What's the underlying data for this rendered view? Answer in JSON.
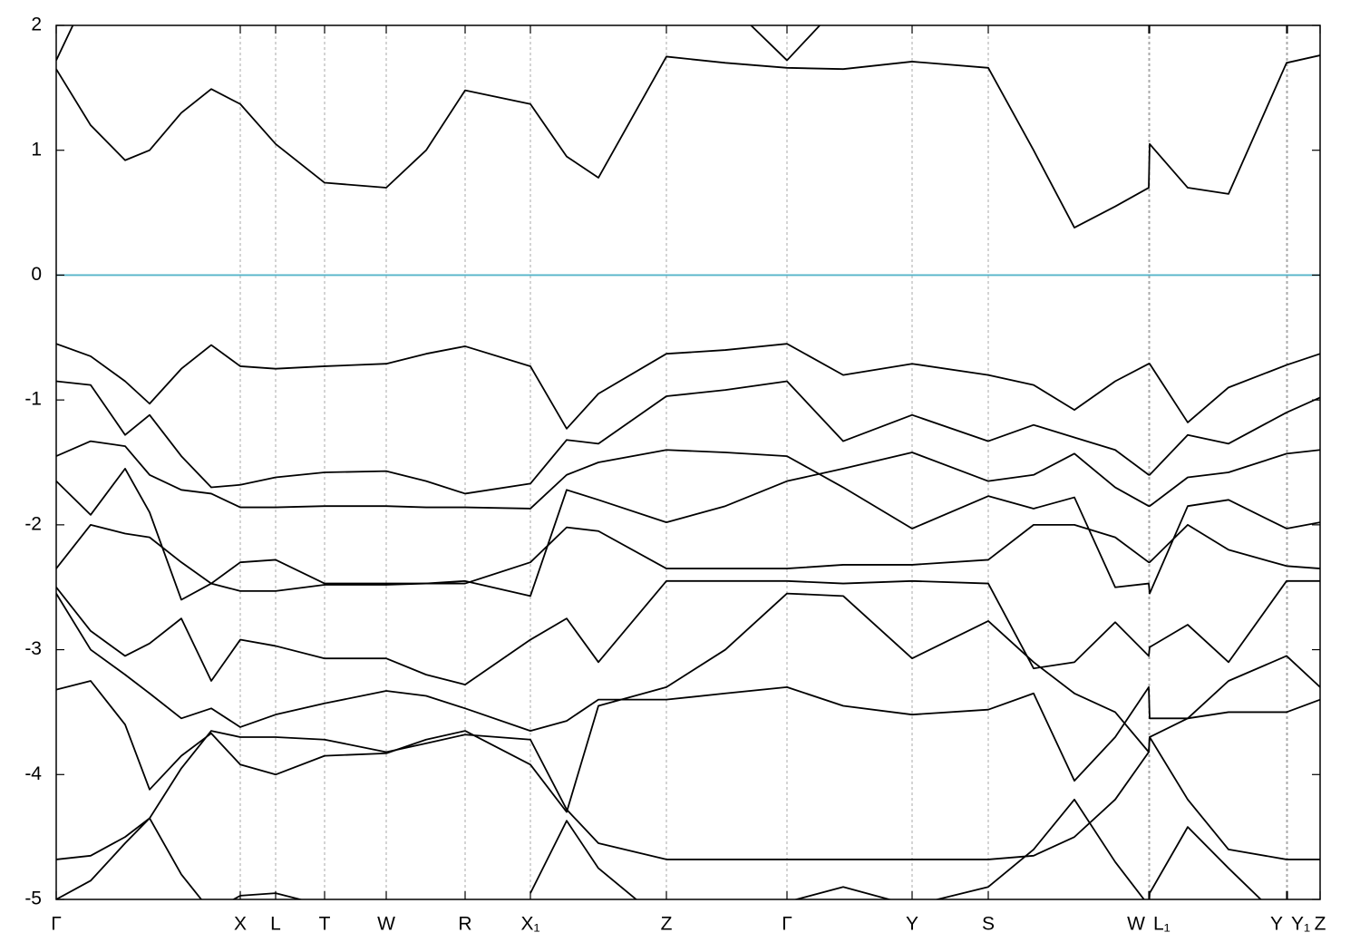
{
  "chart_data": {
    "type": "line",
    "x": [
      0,
      0.38,
      0.76,
      1.03,
      1.38,
      1.71,
      2.03,
      2.42,
      2.96,
      3.64,
      4.08,
      4.51,
      5.23,
      5.63,
      5.98,
      6.73,
      7.38,
      8.06,
      8.68,
      9.44,
      10.28,
      10.78,
      11.23,
      11.68,
      12.05,
      12.06,
      12.48,
      12.93,
      13.57,
      13.94
    ],
    "xlim": [
      0,
      13.94
    ],
    "ylim": [
      -5,
      2
    ],
    "yticks": [
      -5,
      -4,
      -3,
      -2,
      -1,
      0,
      1,
      2
    ],
    "xticks": [
      {
        "value": 0,
        "label": "Γ"
      },
      {
        "value": 2.03,
        "label": "X"
      },
      {
        "value": 2.42,
        "label": "L"
      },
      {
        "value": 2.96,
        "label": "T"
      },
      {
        "value": 3.64,
        "label": "W"
      },
      {
        "value": 4.51,
        "label": "R"
      },
      {
        "value": 5.23,
        "label": "X₁"
      },
      {
        "value": 6.73,
        "label": "Z"
      },
      {
        "value": 8.06,
        "label": "Γ"
      },
      {
        "value": 9.44,
        "label": "Y"
      },
      {
        "value": 10.28,
        "label": "S"
      },
      {
        "value": 12.05,
        "label": "W"
      },
      {
        "value": 12.06,
        "label": "L₁"
      },
      {
        "value": 13.57,
        "label": "Y"
      },
      {
        "value": 13.58,
        "label": "Y₁"
      },
      {
        "value": 13.94,
        "label": "Z"
      }
    ],
    "x_grid": true,
    "hlines": [
      {
        "value": 0,
        "color": "#56b4c9"
      }
    ],
    "series": [
      {
        "color": "#000000",
        "values": [
          1.72,
          2.3,
          null,
          null,
          null,
          null,
          null,
          null,
          null,
          null,
          null,
          null,
          null,
          null,
          null,
          null,
          2.2,
          1.72,
          2.2,
          null,
          null,
          null,
          null,
          null,
          null,
          null,
          null,
          null,
          null,
          null
        ]
      },
      {
        "color": "#000000",
        "values": [
          1.65,
          1.2,
          0.92,
          1.0,
          1.3,
          1.49,
          1.37,
          1.05,
          0.74,
          0.7,
          1.0,
          1.48,
          1.37,
          0.95,
          0.78,
          1.75,
          1.7,
          1.66,
          1.65,
          1.71,
          1.66,
          1.0,
          0.38,
          0.55,
          0.7,
          1.05,
          0.7,
          0.65,
          1.7,
          1.76
        ]
      },
      {
        "color": "#000000",
        "values": [
          -0.55,
          -0.65,
          -0.85,
          -1.03,
          -0.75,
          -0.56,
          -0.73,
          -0.75,
          -0.73,
          -0.71,
          -0.63,
          -0.57,
          -0.73,
          -1.23,
          -0.95,
          -0.63,
          -0.6,
          -0.55,
          -0.8,
          -0.71,
          -0.8,
          -0.88,
          -1.08,
          -0.85,
          -0.71,
          -0.71,
          -1.18,
          -0.9,
          -0.72,
          -0.63
        ]
      },
      {
        "color": "#000000",
        "values": [
          -0.85,
          -0.88,
          -1.28,
          -1.12,
          -1.45,
          -1.7,
          -1.68,
          -1.62,
          -1.58,
          -1.57,
          -1.65,
          -1.75,
          -1.67,
          -1.32,
          -1.35,
          -0.97,
          -0.92,
          -0.85,
          -1.33,
          -1.12,
          -1.33,
          -1.2,
          -1.3,
          -1.4,
          -1.6,
          -1.6,
          -1.28,
          -1.35,
          -1.1,
          -0.98
        ]
      },
      {
        "color": "#000000",
        "values": [
          -1.45,
          -1.33,
          -1.37,
          -1.6,
          -1.72,
          -1.75,
          -1.86,
          -1.86,
          -1.85,
          -1.85,
          -1.86,
          -1.86,
          -1.87,
          -1.6,
          -1.5,
          -1.4,
          -1.42,
          -1.45,
          -1.7,
          -2.03,
          -1.77,
          -1.87,
          -1.78,
          -2.5,
          -2.47,
          -2.55,
          -1.85,
          -1.8,
          -2.03,
          -1.98
        ]
      },
      {
        "color": "#000000",
        "values": [
          -1.65,
          -1.92,
          -1.55,
          -1.9,
          -2.6,
          -2.47,
          -2.3,
          -2.28,
          -2.47,
          -2.47,
          -2.47,
          -2.45,
          -2.57,
          -1.72,
          -1.8,
          -1.98,
          -1.85,
          -1.65,
          -1.55,
          -1.42,
          -1.65,
          -1.6,
          -1.43,
          -1.7,
          -1.85,
          -1.85,
          -1.62,
          -1.58,
          -1.43,
          -1.4
        ]
      },
      {
        "color": "#000000",
        "values": [
          -2.35,
          -2.0,
          -2.07,
          -2.1,
          -2.3,
          -2.47,
          -2.53,
          -2.53,
          -2.48,
          -2.48,
          -2.47,
          -2.47,
          -2.3,
          -2.02,
          -2.05,
          -2.35,
          -2.35,
          -2.35,
          -2.32,
          -2.32,
          -2.28,
          -2.0,
          -2.0,
          -2.1,
          -2.3,
          -2.3,
          -2.0,
          -2.2,
          -2.33,
          -2.35
        ]
      },
      {
        "color": "#000000",
        "values": [
          -2.5,
          -2.85,
          -3.05,
          -2.95,
          -2.75,
          -3.25,
          -2.92,
          -2.97,
          -3.07,
          -3.07,
          -3.2,
          -3.28,
          -2.92,
          -2.75,
          -3.1,
          -2.45,
          -2.45,
          -2.45,
          -2.47,
          -2.45,
          -2.47,
          -3.15,
          -3.1,
          -2.78,
          -3.05,
          -2.98,
          -2.8,
          -3.1,
          -2.45,
          -2.45
        ]
      },
      {
        "color": "#000000",
        "values": [
          -2.55,
          -3.0,
          -3.2,
          -3.35,
          -3.55,
          -3.47,
          -3.62,
          -3.52,
          -3.43,
          -3.33,
          -3.37,
          -3.47,
          -3.65,
          -3.57,
          -3.4,
          -3.4,
          -3.35,
          -3.3,
          -3.45,
          -3.52,
          -3.48,
          -3.35,
          -4.05,
          -3.7,
          -3.3,
          -3.55,
          -3.55,
          -3.5,
          -3.5,
          -3.4
        ]
      },
      {
        "color": "#000000",
        "values": [
          -3.32,
          -3.25,
          -3.6,
          -4.12,
          -3.85,
          -3.67,
          -3.92,
          -4.0,
          -3.85,
          -3.83,
          -3.72,
          -3.65,
          -3.92,
          -4.3,
          -3.45,
          -3.3,
          -3.0,
          -2.55,
          -2.57,
          -3.07,
          -2.77,
          -3.1,
          -3.35,
          -3.5,
          -3.82,
          -3.7,
          -3.55,
          -3.25,
          -3.05,
          -3.3
        ]
      },
      {
        "color": "#000000",
        "values": [
          -4.68,
          -4.65,
          -4.5,
          -4.35,
          -3.95,
          -3.65,
          -3.7,
          -3.7,
          -3.72,
          -3.82,
          -3.75,
          -3.68,
          -3.72,
          -4.28,
          -4.55,
          -4.68,
          -4.68,
          -4.68,
          -4.68,
          -4.68,
          -4.68,
          -4.65,
          -4.5,
          -4.2,
          -3.82,
          -3.7,
          -4.2,
          -4.6,
          -4.68,
          -4.68
        ]
      },
      {
        "color": "#000000",
        "values": [
          -5.0,
          -4.85,
          -4.55,
          -4.35,
          -4.8,
          -5.1,
          -4.97,
          -4.95,
          -5.05,
          null,
          null,
          null,
          -4.95,
          -4.37,
          -4.75,
          -5.2,
          -5.2,
          -5.02,
          -4.9,
          -5.05,
          -4.9,
          -4.6,
          -4.2,
          -4.7,
          -5.05,
          -4.95,
          -4.42,
          -4.75,
          -5.2,
          -5.3
        ]
      }
    ]
  }
}
